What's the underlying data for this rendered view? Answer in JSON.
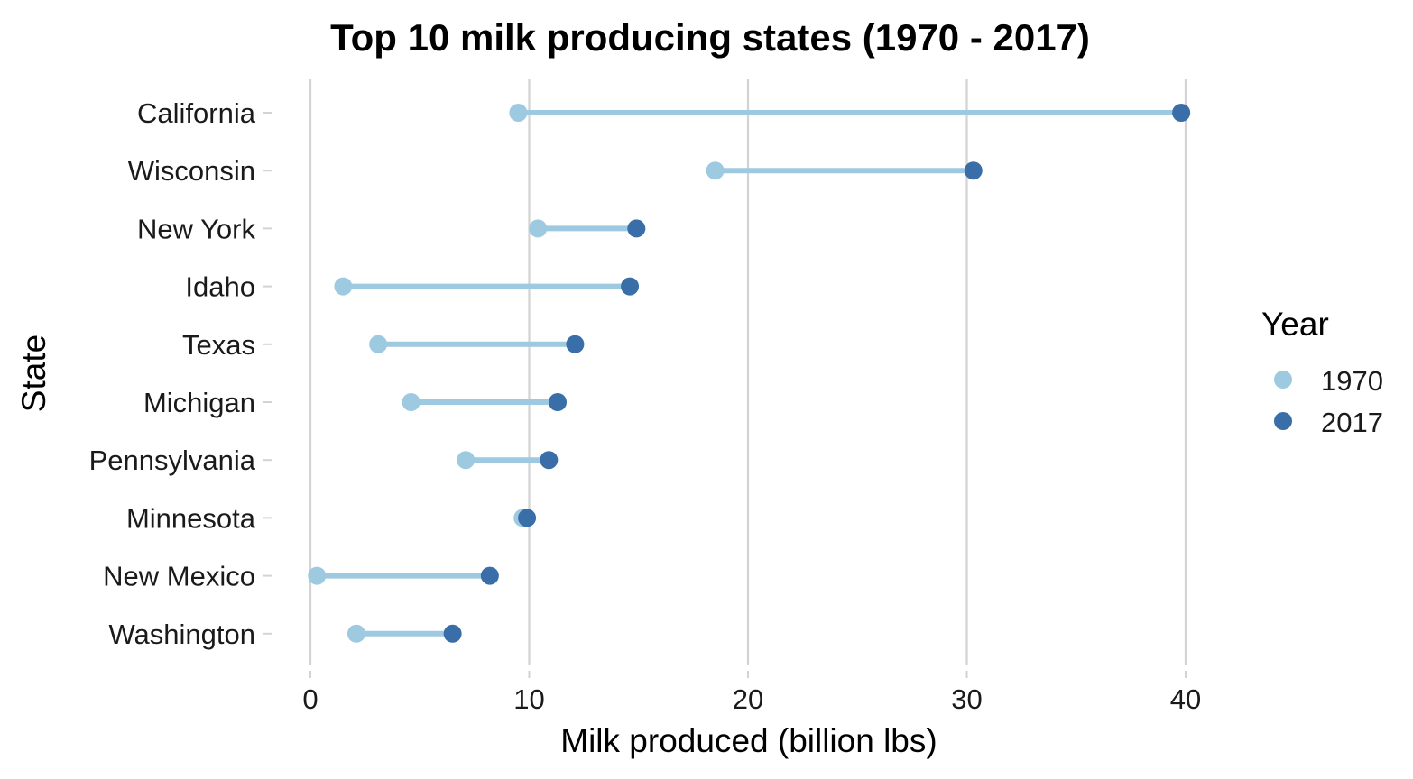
{
  "chart_data": {
    "type": "dumbbell",
    "title": "Top 10 milk producing states (1970 - 2017)",
    "xlabel": "Milk produced (billion lbs)",
    "ylabel": "State",
    "xlim": [
      0,
      40
    ],
    "x_ticks": [
      0,
      10,
      20,
      30,
      40
    ],
    "grid": "vertical major",
    "legend": {
      "title": "Year",
      "placement": "right",
      "entries": [
        "1970",
        "2017"
      ]
    },
    "colors": {
      "1970": "#9ecae1",
      "2017": "#3a6ea8",
      "segment": "#9ecae1",
      "grid": "#d3d3d3"
    },
    "categories": [
      "California",
      "Wisconsin",
      "New York",
      "Idaho",
      "Texas",
      "Michigan",
      "Pennsylvania",
      "Minnesota",
      "New Mexico",
      "Washington"
    ],
    "series": [
      {
        "name": "1970",
        "values": [
          9.5,
          18.5,
          10.4,
          1.5,
          3.1,
          4.6,
          7.1,
          9.7,
          0.3,
          2.1
        ]
      },
      {
        "name": "2017",
        "values": [
          39.8,
          30.3,
          14.9,
          14.6,
          12.1,
          11.3,
          10.9,
          9.9,
          8.2,
          6.5
        ]
      }
    ]
  }
}
